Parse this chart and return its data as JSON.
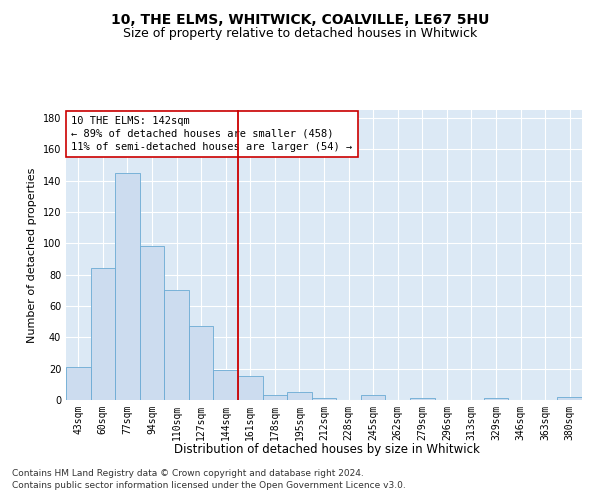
{
  "title": "10, THE ELMS, WHITWICK, COALVILLE, LE67 5HU",
  "subtitle": "Size of property relative to detached houses in Whitwick",
  "xlabel": "Distribution of detached houses by size in Whitwick",
  "ylabel": "Number of detached properties",
  "bar_color": "#ccdcef",
  "bar_edge_color": "#6aaad4",
  "background_color": "#ffffff",
  "plot_bg_color": "#dce9f5",
  "grid_color": "#ffffff",
  "vline_color": "#cc0000",
  "categories": [
    "43sqm",
    "60sqm",
    "77sqm",
    "94sqm",
    "110sqm",
    "127sqm",
    "144sqm",
    "161sqm",
    "178sqm",
    "195sqm",
    "212sqm",
    "228sqm",
    "245sqm",
    "262sqm",
    "279sqm",
    "296sqm",
    "313sqm",
    "329sqm",
    "346sqm",
    "363sqm",
    "380sqm"
  ],
  "values": [
    21,
    84,
    145,
    98,
    70,
    47,
    19,
    15,
    3,
    5,
    1,
    0,
    3,
    0,
    1,
    0,
    0,
    1,
    0,
    0,
    2
  ],
  "vline_index": 6.5,
  "ylim": [
    0,
    185
  ],
  "yticks": [
    0,
    20,
    40,
    60,
    80,
    100,
    120,
    140,
    160,
    180
  ],
  "annotation_line1": "10 THE ELMS: 142sqm",
  "annotation_line2": "← 89% of detached houses are smaller (458)",
  "annotation_line3": "11% of semi-detached houses are larger (54) →",
  "annotation_box_color": "#ffffff",
  "annotation_box_edge": "#cc0000",
  "footer1": "Contains HM Land Registry data © Crown copyright and database right 2024.",
  "footer2": "Contains public sector information licensed under the Open Government Licence v3.0.",
  "title_fontsize": 10,
  "subtitle_fontsize": 9,
  "xlabel_fontsize": 8.5,
  "ylabel_fontsize": 8,
  "tick_fontsize": 7,
  "footer_fontsize": 6.5,
  "annotation_fontsize": 7.5
}
